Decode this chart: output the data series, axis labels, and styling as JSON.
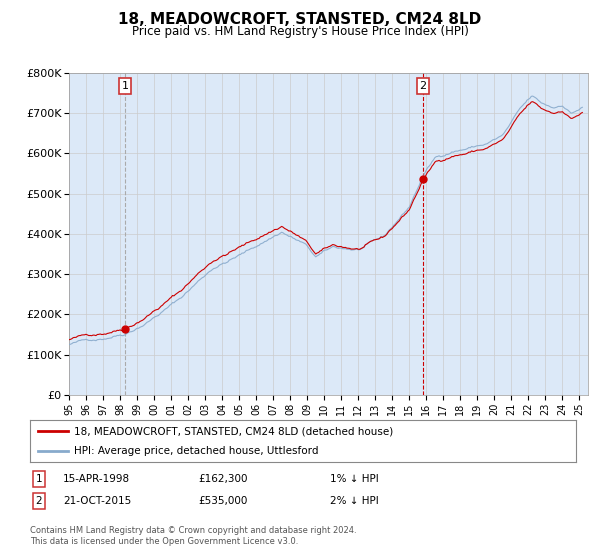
{
  "title": "18, MEADOWCROFT, STANSTED, CM24 8LD",
  "subtitle": "Price paid vs. HM Land Registry's House Price Index (HPI)",
  "sale1_date_label": "15-APR-1998",
  "sale1_price": 162300,
  "sale1_hpi_note": "1% ↓ HPI",
  "sale2_date_label": "21-OCT-2015",
  "sale2_price": 535000,
  "sale2_hpi_note": "2% ↓ HPI",
  "sale1_x": 1998.29,
  "sale2_x": 2015.81,
  "legend_line1": "18, MEADOWCROFT, STANSTED, CM24 8LD (detached house)",
  "legend_line2": "HPI: Average price, detached house, Uttlesford",
  "footer": "Contains HM Land Registry data © Crown copyright and database right 2024.\nThis data is licensed under the Open Government Licence v3.0.",
  "xmin": 1995.0,
  "xmax": 2025.5,
  "ymin": 0,
  "ymax": 800000,
  "yticks": [
    0,
    100000,
    200000,
    300000,
    400000,
    500000,
    600000,
    700000,
    800000
  ],
  "grid_color": "#cccccc",
  "plot_bg": "#dce9f8",
  "line_color_red": "#cc0000",
  "line_color_blue": "#88aacc",
  "sale_dot_color": "#cc0000",
  "vline1_color": "#aaaaaa",
  "vline2_color": "#cc0000",
  "box_color": "#cc3333"
}
